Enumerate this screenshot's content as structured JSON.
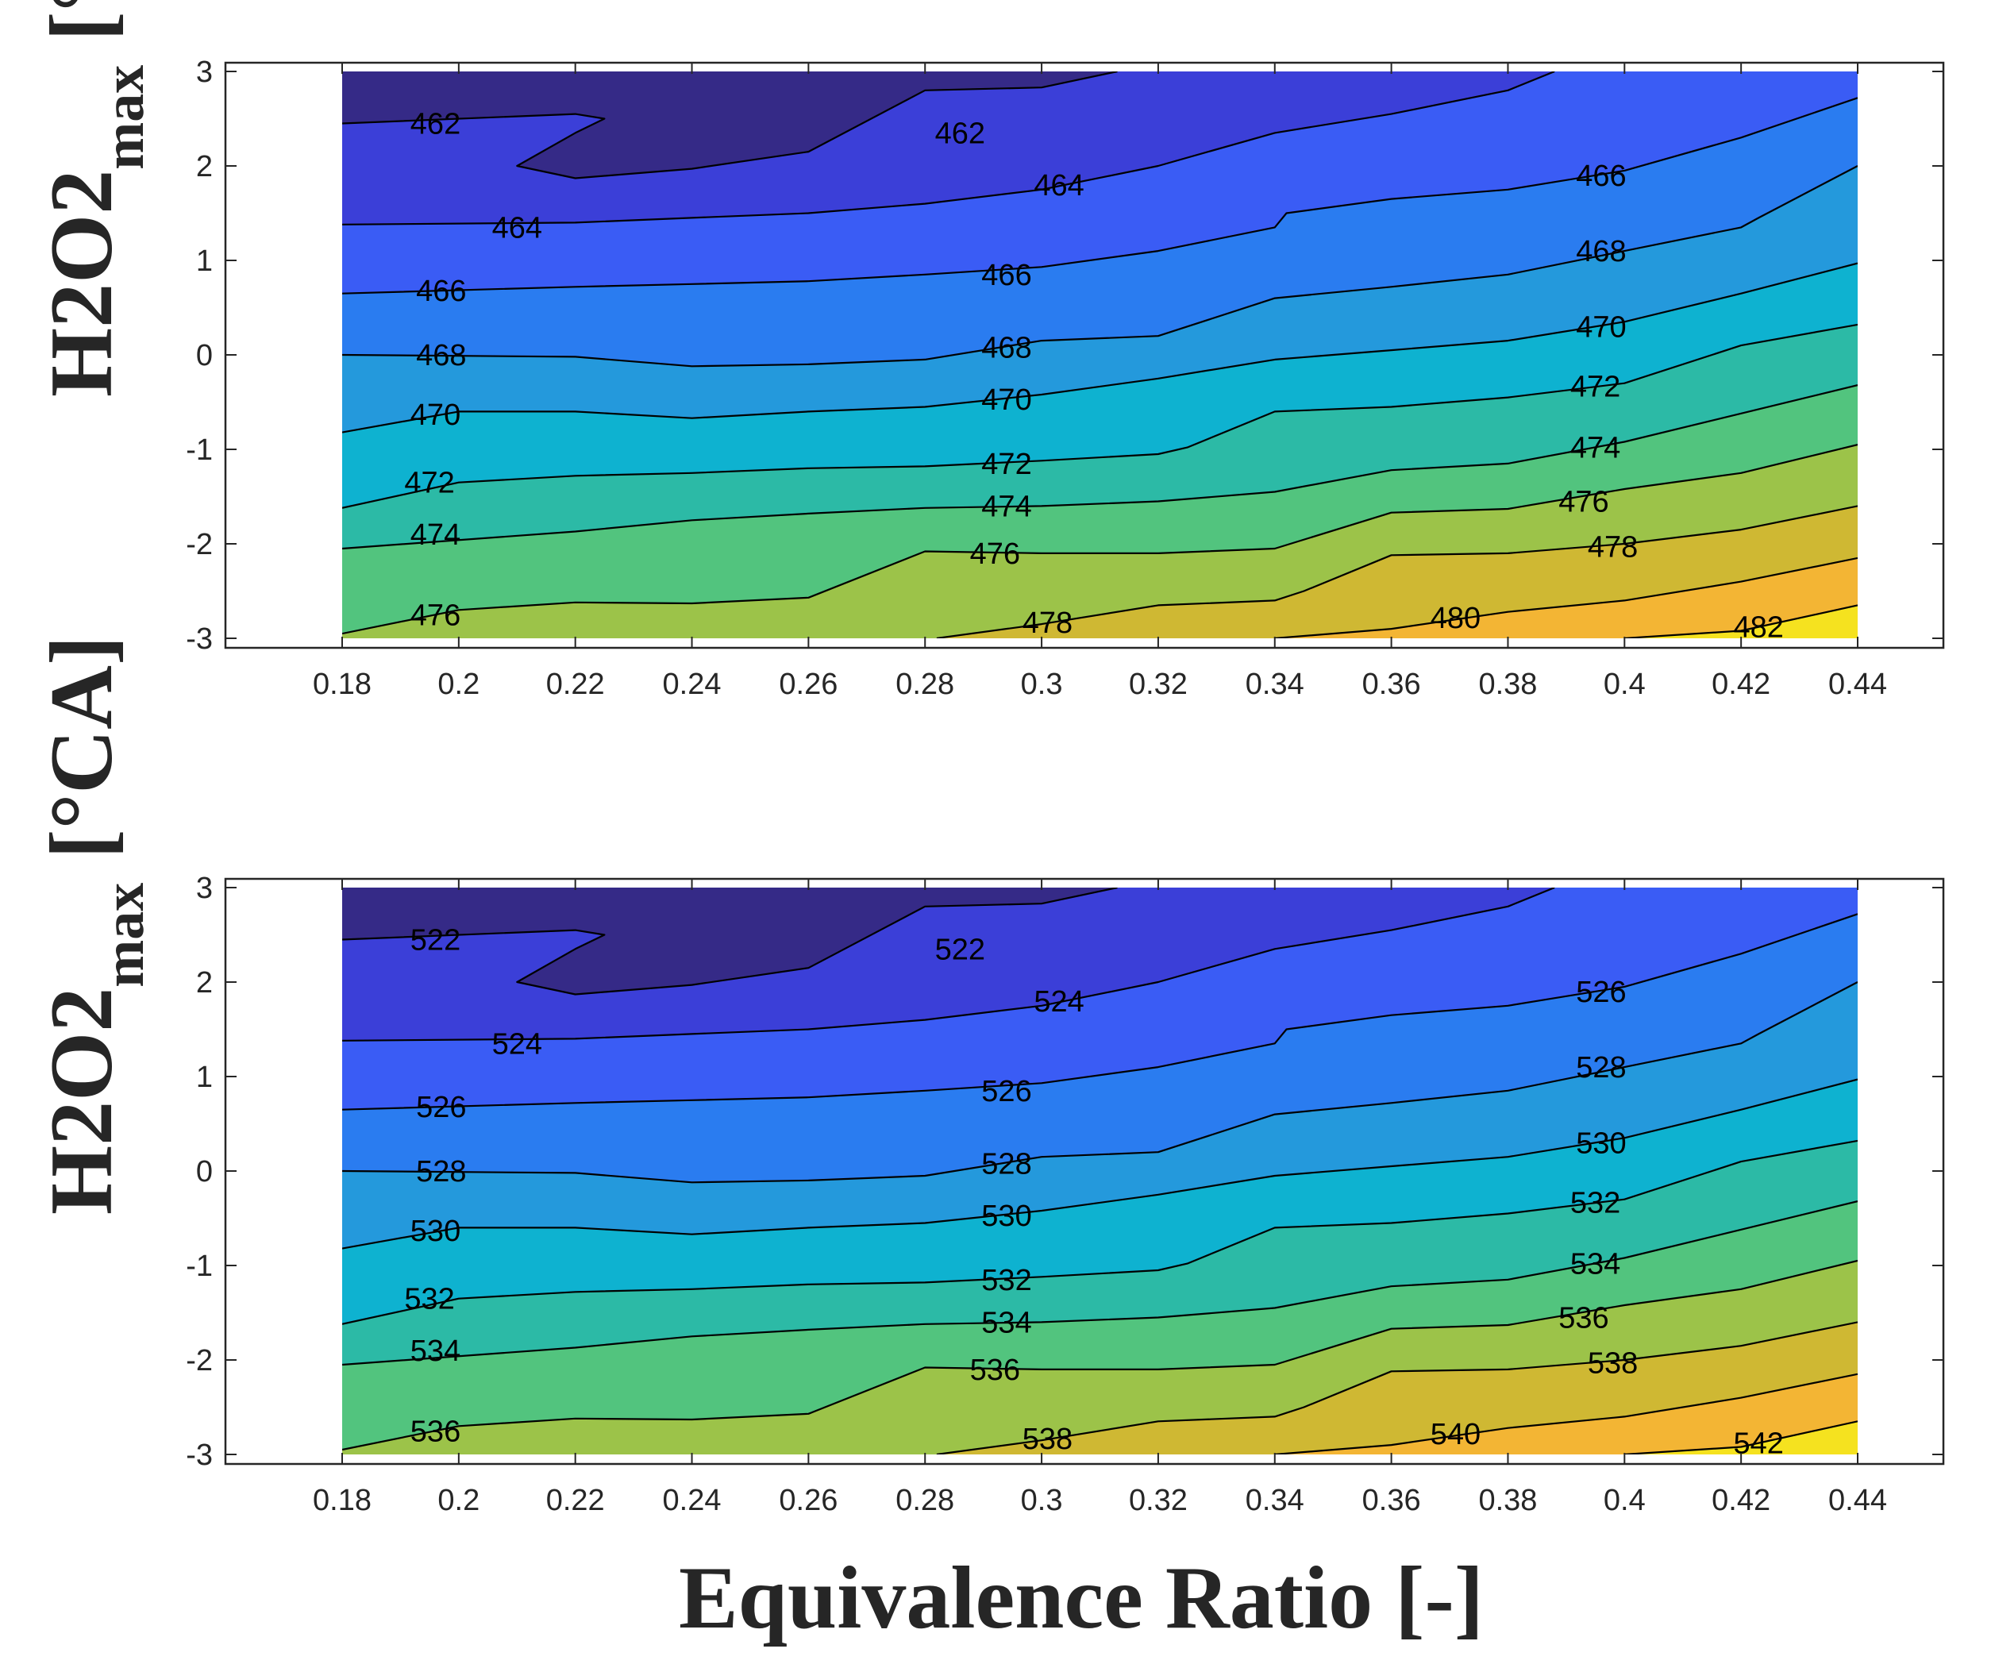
{
  "chart_data": [
    {
      "type": "contour",
      "panel": "top",
      "ylabel": "H2O2",
      "ylabel_subscript": "max",
      "ylabel_unit": "[°CA]",
      "xlim": [
        0.18,
        0.44
      ],
      "ylim": [
        -3,
        3
      ],
      "x_ticks": [
        "0.18",
        "0.2",
        "0.22",
        "0.24",
        "0.26",
        "0.28",
        "0.3",
        "0.32",
        "0.34",
        "0.36",
        "0.38",
        "0.4",
        "0.42",
        "0.44"
      ],
      "y_ticks": [
        "3",
        "2",
        "1",
        "0",
        "-1",
        "-2",
        "-3"
      ],
      "contour_levels": [
        462,
        464,
        466,
        468,
        470,
        472,
        474,
        476,
        478,
        480,
        482
      ],
      "contour_lines": [
        {
          "level": 462,
          "x": [
            0.18,
            0.22,
            0.225,
            0.22,
            0.21,
            0.22,
            0.24,
            0.26,
            0.28,
            0.3,
            0.313
          ],
          "y": [
            2.45,
            2.55,
            2.5,
            2.35,
            2.0,
            1.87,
            1.97,
            2.15,
            2.8,
            2.83,
            3.0
          ]
        },
        {
          "level": 464,
          "x": [
            0.18,
            0.22,
            0.24,
            0.26,
            0.28,
            0.3,
            0.32,
            0.34,
            0.36,
            0.38,
            0.388
          ],
          "y": [
            1.38,
            1.4,
            1.45,
            1.5,
            1.6,
            1.75,
            2.0,
            2.35,
            2.55,
            2.8,
            3.0
          ]
        },
        {
          "level": 466,
          "x": [
            0.18,
            0.22,
            0.24,
            0.26,
            0.28,
            0.3,
            0.32,
            0.34,
            0.342,
            0.36,
            0.38,
            0.4,
            0.42,
            0.44
          ],
          "y": [
            0.65,
            0.72,
            0.75,
            0.78,
            0.85,
            0.93,
            1.1,
            1.35,
            1.5,
            1.65,
            1.75,
            1.95,
            2.3,
            2.72
          ]
        },
        {
          "level": 468,
          "x": [
            0.18,
            0.22,
            0.24,
            0.26,
            0.28,
            0.3,
            0.32,
            0.34,
            0.36,
            0.38,
            0.4,
            0.42,
            0.423,
            0.44
          ],
          "y": [
            0.0,
            -0.02,
            -0.12,
            -0.1,
            -0.05,
            0.15,
            0.2,
            0.6,
            0.72,
            0.85,
            1.1,
            1.35,
            1.45,
            2.0
          ]
        },
        {
          "level": 470,
          "x": [
            0.18,
            0.2,
            0.22,
            0.24,
            0.26,
            0.28,
            0.3,
            0.32,
            0.34,
            0.36,
            0.38,
            0.4,
            0.42,
            0.44
          ],
          "y": [
            -0.82,
            -0.6,
            -0.6,
            -0.67,
            -0.6,
            -0.55,
            -0.42,
            -0.25,
            -0.05,
            0.05,
            0.15,
            0.35,
            0.65,
            0.97
          ]
        },
        {
          "level": 472,
          "x": [
            0.18,
            0.2,
            0.22,
            0.24,
            0.26,
            0.28,
            0.3,
            0.32,
            0.325,
            0.34,
            0.36,
            0.38,
            0.4,
            0.42,
            0.44
          ],
          "y": [
            -1.62,
            -1.35,
            -1.28,
            -1.25,
            -1.2,
            -1.18,
            -1.12,
            -1.05,
            -0.98,
            -0.6,
            -0.55,
            -0.45,
            -0.3,
            0.1,
            0.32
          ]
        },
        {
          "level": 474,
          "x": [
            0.18,
            0.22,
            0.24,
            0.26,
            0.28,
            0.3,
            0.32,
            0.34,
            0.36,
            0.38,
            0.4,
            0.42,
            0.44
          ],
          "y": [
            -2.05,
            -1.87,
            -1.75,
            -1.68,
            -1.62,
            -1.6,
            -1.55,
            -1.45,
            -1.22,
            -1.15,
            -0.92,
            -0.62,
            -0.32
          ]
        },
        {
          "level": 476,
          "x": [
            0.18,
            0.2,
            0.22,
            0.24,
            0.26,
            0.28,
            0.3,
            0.32,
            0.34,
            0.36,
            0.38,
            0.4,
            0.42,
            0.44
          ],
          "y": [
            -2.95,
            -2.7,
            -2.62,
            -2.63,
            -2.57,
            -2.08,
            -2.1,
            -2.1,
            -2.05,
            -1.67,
            -1.63,
            -1.42,
            -1.25,
            -0.95
          ]
        },
        {
          "level": 478,
          "x": [
            0.282,
            0.3,
            0.32,
            0.34,
            0.345,
            0.36,
            0.38,
            0.4,
            0.42,
            0.44
          ],
          "y": [
            -3.0,
            -2.85,
            -2.65,
            -2.6,
            -2.5,
            -2.12,
            -2.1,
            -2.0,
            -1.85,
            -1.6
          ]
        },
        {
          "level": 480,
          "x": [
            0.34,
            0.36,
            0.38,
            0.4,
            0.42,
            0.44
          ],
          "y": [
            -3.0,
            -2.9,
            -2.72,
            -2.6,
            -2.4,
            -2.15
          ]
        },
        {
          "level": 482,
          "x": [
            0.4,
            0.42,
            0.44
          ],
          "y": [
            -3.0,
            -2.92,
            -2.65
          ]
        }
      ],
      "contour_labels": [
        {
          "text": "462",
          "x": 0.196,
          "y": 2.45
        },
        {
          "text": "462",
          "x": 0.286,
          "y": 2.35
        },
        {
          "text": "464",
          "x": 0.21,
          "y": 1.35
        },
        {
          "text": "464",
          "x": 0.303,
          "y": 1.8
        },
        {
          "text": "466",
          "x": 0.396,
          "y": 1.9
        },
        {
          "text": "466",
          "x": 0.197,
          "y": 0.68
        },
        {
          "text": "466",
          "x": 0.294,
          "y": 0.85
        },
        {
          "text": "468",
          "x": 0.396,
          "y": 1.1
        },
        {
          "text": "468",
          "x": 0.197,
          "y": 0.0
        },
        {
          "text": "468",
          "x": 0.294,
          "y": 0.08
        },
        {
          "text": "470",
          "x": 0.396,
          "y": 0.3
        },
        {
          "text": "470",
          "x": 0.196,
          "y": -0.63
        },
        {
          "text": "470",
          "x": 0.294,
          "y": -0.47
        },
        {
          "text": "472",
          "x": 0.395,
          "y": -0.33
        },
        {
          "text": "472",
          "x": 0.195,
          "y": -1.35
        },
        {
          "text": "472",
          "x": 0.294,
          "y": -1.15
        },
        {
          "text": "474",
          "x": 0.395,
          "y": -0.98
        },
        {
          "text": "474",
          "x": 0.196,
          "y": -1.9
        },
        {
          "text": "474",
          "x": 0.294,
          "y": -1.6
        },
        {
          "text": "476",
          "x": 0.393,
          "y": -1.55
        },
        {
          "text": "476",
          "x": 0.196,
          "y": -2.75
        },
        {
          "text": "476",
          "x": 0.292,
          "y": -2.1
        },
        {
          "text": "478",
          "x": 0.398,
          "y": -2.03
        },
        {
          "text": "478",
          "x": 0.301,
          "y": -2.83
        },
        {
          "text": "480",
          "x": 0.371,
          "y": -2.78
        },
        {
          "text": "482",
          "x": 0.423,
          "y": -2.88
        }
      ]
    },
    {
      "type": "contour",
      "panel": "bottom",
      "xlabel": "Equivalence Ratio [-]",
      "ylabel": "H2O2",
      "ylabel_subscript": "max",
      "ylabel_unit": "[°CA]",
      "xlim": [
        0.18,
        0.44
      ],
      "ylim": [
        -3,
        3
      ],
      "x_ticks": [
        "0.18",
        "0.2",
        "0.22",
        "0.24",
        "0.26",
        "0.28",
        "0.3",
        "0.32",
        "0.34",
        "0.36",
        "0.38",
        "0.4",
        "0.42",
        "0.44"
      ],
      "y_ticks": [
        "3",
        "2",
        "1",
        "0",
        "-1",
        "-2",
        "-3"
      ],
      "contour_levels": [
        522,
        524,
        526,
        528,
        530,
        532,
        534,
        536,
        538,
        540,
        542
      ],
      "contour_lines": [
        {
          "level": 522,
          "x": [
            0.18,
            0.22,
            0.225,
            0.22,
            0.21,
            0.22,
            0.24,
            0.26,
            0.28,
            0.3,
            0.313
          ],
          "y": [
            2.45,
            2.55,
            2.5,
            2.35,
            2.0,
            1.87,
            1.97,
            2.15,
            2.8,
            2.83,
            3.0
          ]
        },
        {
          "level": 524,
          "x": [
            0.18,
            0.22,
            0.24,
            0.26,
            0.28,
            0.3,
            0.32,
            0.34,
            0.36,
            0.38,
            0.388
          ],
          "y": [
            1.38,
            1.4,
            1.45,
            1.5,
            1.6,
            1.75,
            2.0,
            2.35,
            2.55,
            2.8,
            3.0
          ]
        },
        {
          "level": 526,
          "x": [
            0.18,
            0.22,
            0.24,
            0.26,
            0.28,
            0.3,
            0.32,
            0.34,
            0.342,
            0.36,
            0.38,
            0.4,
            0.42,
            0.44
          ],
          "y": [
            0.65,
            0.72,
            0.75,
            0.78,
            0.85,
            0.93,
            1.1,
            1.35,
            1.5,
            1.65,
            1.75,
            1.95,
            2.3,
            2.72
          ]
        },
        {
          "level": 528,
          "x": [
            0.18,
            0.22,
            0.24,
            0.26,
            0.28,
            0.3,
            0.32,
            0.34,
            0.36,
            0.38,
            0.4,
            0.42,
            0.423,
            0.44
          ],
          "y": [
            0.0,
            -0.02,
            -0.12,
            -0.1,
            -0.05,
            0.15,
            0.2,
            0.6,
            0.72,
            0.85,
            1.1,
            1.35,
            1.45,
            2.0
          ]
        },
        {
          "level": 530,
          "x": [
            0.18,
            0.2,
            0.22,
            0.24,
            0.26,
            0.28,
            0.3,
            0.32,
            0.34,
            0.36,
            0.38,
            0.4,
            0.42,
            0.44
          ],
          "y": [
            -0.82,
            -0.6,
            -0.6,
            -0.67,
            -0.6,
            -0.55,
            -0.42,
            -0.25,
            -0.05,
            0.05,
            0.15,
            0.35,
            0.65,
            0.97
          ]
        },
        {
          "level": 532,
          "x": [
            0.18,
            0.2,
            0.22,
            0.24,
            0.26,
            0.28,
            0.3,
            0.32,
            0.325,
            0.34,
            0.36,
            0.38,
            0.4,
            0.42,
            0.44
          ],
          "y": [
            -1.62,
            -1.35,
            -1.28,
            -1.25,
            -1.2,
            -1.18,
            -1.12,
            -1.05,
            -0.98,
            -0.6,
            -0.55,
            -0.45,
            -0.3,
            0.1,
            0.32
          ]
        },
        {
          "level": 534,
          "x": [
            0.18,
            0.22,
            0.24,
            0.26,
            0.28,
            0.3,
            0.32,
            0.34,
            0.36,
            0.38,
            0.4,
            0.42,
            0.44
          ],
          "y": [
            -2.05,
            -1.87,
            -1.75,
            -1.68,
            -1.62,
            -1.6,
            -1.55,
            -1.45,
            -1.22,
            -1.15,
            -0.92,
            -0.62,
            -0.32
          ]
        },
        {
          "level": 536,
          "x": [
            0.18,
            0.2,
            0.22,
            0.24,
            0.26,
            0.28,
            0.3,
            0.32,
            0.34,
            0.36,
            0.38,
            0.4,
            0.42,
            0.44
          ],
          "y": [
            -2.95,
            -2.7,
            -2.62,
            -2.63,
            -2.57,
            -2.08,
            -2.1,
            -2.1,
            -2.05,
            -1.67,
            -1.63,
            -1.42,
            -1.25,
            -0.95
          ]
        },
        {
          "level": 538,
          "x": [
            0.282,
            0.3,
            0.32,
            0.34,
            0.345,
            0.36,
            0.38,
            0.4,
            0.42,
            0.44
          ],
          "y": [
            -3.0,
            -2.85,
            -2.65,
            -2.6,
            -2.5,
            -2.12,
            -2.1,
            -2.0,
            -1.85,
            -1.6
          ]
        },
        {
          "level": 540,
          "x": [
            0.34,
            0.36,
            0.38,
            0.4,
            0.42,
            0.44
          ],
          "y": [
            -3.0,
            -2.9,
            -2.72,
            -2.6,
            -2.4,
            -2.15
          ]
        },
        {
          "level": 542,
          "x": [
            0.4,
            0.42,
            0.44
          ],
          "y": [
            -3.0,
            -2.92,
            -2.65
          ]
        }
      ],
      "contour_labels": [
        {
          "text": "522",
          "x": 0.196,
          "y": 2.45
        },
        {
          "text": "522",
          "x": 0.286,
          "y": 2.35
        },
        {
          "text": "524",
          "x": 0.21,
          "y": 1.35
        },
        {
          "text": "524",
          "x": 0.303,
          "y": 1.8
        },
        {
          "text": "526",
          "x": 0.396,
          "y": 1.9
        },
        {
          "text": "526",
          "x": 0.197,
          "y": 0.68
        },
        {
          "text": "526",
          "x": 0.294,
          "y": 0.85
        },
        {
          "text": "528",
          "x": 0.396,
          "y": 1.1
        },
        {
          "text": "528",
          "x": 0.197,
          "y": 0.0
        },
        {
          "text": "528",
          "x": 0.294,
          "y": 0.08
        },
        {
          "text": "530",
          "x": 0.396,
          "y": 0.3
        },
        {
          "text": "530",
          "x": 0.196,
          "y": -0.63
        },
        {
          "text": "530",
          "x": 0.294,
          "y": -0.47
        },
        {
          "text": "532",
          "x": 0.395,
          "y": -0.33
        },
        {
          "text": "532",
          "x": 0.195,
          "y": -1.35
        },
        {
          "text": "532",
          "x": 0.294,
          "y": -1.15
        },
        {
          "text": "534",
          "x": 0.395,
          "y": -0.98
        },
        {
          "text": "534",
          "x": 0.196,
          "y": -1.9
        },
        {
          "text": "534",
          "x": 0.294,
          "y": -1.6
        },
        {
          "text": "536",
          "x": 0.393,
          "y": -1.55
        },
        {
          "text": "536",
          "x": 0.196,
          "y": -2.75
        },
        {
          "text": "536",
          "x": 0.292,
          "y": -2.1
        },
        {
          "text": "538",
          "x": 0.398,
          "y": -2.03
        },
        {
          "text": "538",
          "x": 0.301,
          "y": -2.83
        },
        {
          "text": "540",
          "x": 0.371,
          "y": -2.78
        },
        {
          "text": "542",
          "x": 0.423,
          "y": -2.88
        }
      ]
    }
  ],
  "colormap": [
    "#352a87",
    "#3b3fd8",
    "#3a5cf5",
    "#2a7cf0",
    "#2499dc",
    "#0eb2d0",
    "#2cbaa6",
    "#52c47e",
    "#9cc349",
    "#cfb833",
    "#f3b534",
    "#f5e21f",
    "#f9fb0e"
  ]
}
